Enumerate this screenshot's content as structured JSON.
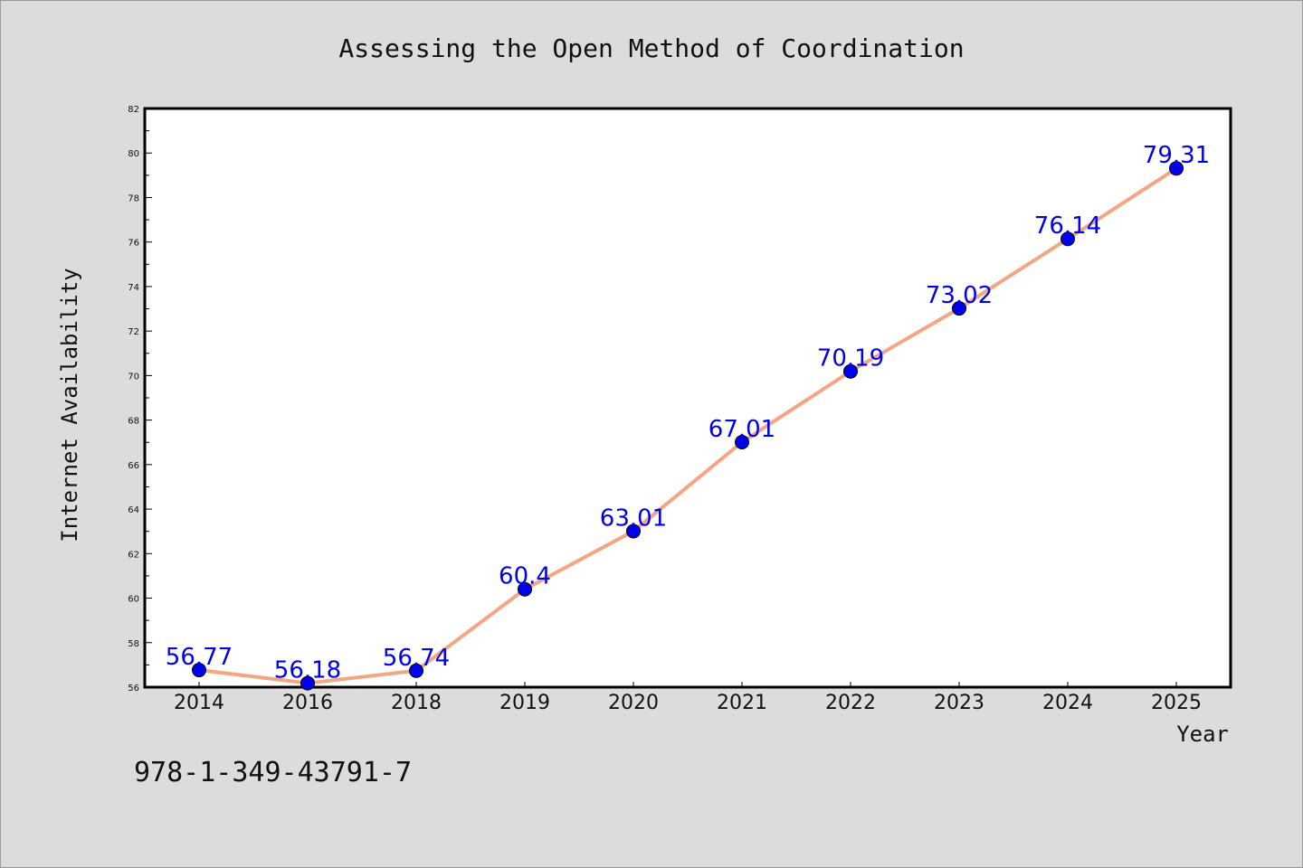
{
  "chart_data": {
    "type": "line",
    "title": "Assessing the Open Method of Coordination",
    "xlabel": "Year",
    "ylabel": "Internet Availability",
    "categories": [
      "2014",
      "2016",
      "2018",
      "2019",
      "2020",
      "2021",
      "2022",
      "2023",
      "2024",
      "2025"
    ],
    "series": [
      {
        "values": [
          56.77,
          56.18,
          56.74,
          60.4,
          63.01,
          67.01,
          70.19,
          73.02,
          76.14,
          79.31
        ],
        "data_labels": [
          "56.77",
          "56.18",
          "56.74",
          "60.4",
          "63.01",
          "67.01",
          "70.19",
          "73.02",
          "76.14",
          "79.31"
        ],
        "line_color": "#f4a582",
        "marker_color": "#0000ee"
      }
    ],
    "ylim": [
      56,
      82
    ],
    "yticks": [
      "56",
      "58",
      "60",
      "62",
      "64",
      "66",
      "68",
      "70",
      "72",
      "74",
      "76",
      "78",
      "80",
      "82"
    ],
    "grid": false,
    "legend": "none"
  },
  "footer": {
    "isbn": "978-1-349-43791-7"
  }
}
